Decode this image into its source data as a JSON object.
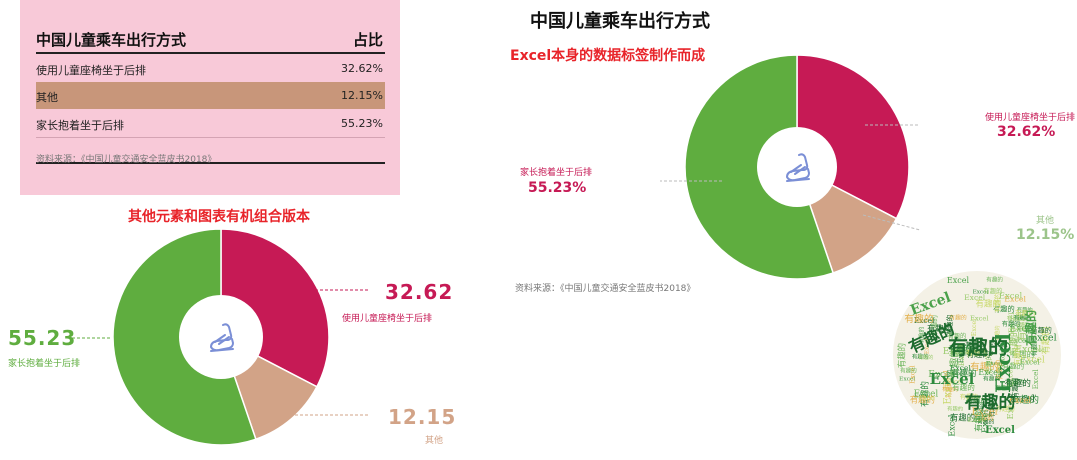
{
  "table": {
    "header_name": "中国儿童乘车出行方式",
    "header_share": "占比",
    "rows": [
      {
        "name": "使用儿童座椅坐于后排",
        "share": "32.62%"
      },
      {
        "name": "其他",
        "share": "12.15%"
      },
      {
        "name": "家长抱着坐于后排",
        "share": "55.23%"
      }
    ],
    "source": "资料来源：《中国儿童交通安全蓝皮书2018》"
  },
  "main_title": "中国儿童乘车出行方式",
  "right_subtitle": "Excel本身的数据标签制作而成",
  "left_subtitle": "其他元素和图表有机组合版本",
  "right_source": "资料来源：《中国儿童交通安全蓝皮书2018》",
  "colors": {
    "seat": "#c61a55",
    "other": "#d2a387",
    "held": "#5fad3f",
    "icon": "#7b8fd6",
    "title_red": "#e8242a"
  },
  "icons": {
    "center": "car-seat-icon"
  },
  "chart_data": [
    {
      "type": "pie",
      "style": "donut",
      "title": "中国儿童乘车出行方式",
      "subtitle": "Excel本身的数据标签制作而成",
      "categories": [
        "使用儿童座椅坐于后排",
        "其他",
        "家长抱着坐于后排"
      ],
      "values": [
        32.62,
        12.15,
        55.23
      ],
      "labels": [
        "32.62%",
        "12.15%",
        "55.23%"
      ]
    },
    {
      "type": "pie",
      "style": "donut",
      "title": "其他元素和图表有机组合版本",
      "categories": [
        "使用儿童座椅坐于后排",
        "其他",
        "家长抱着坐于后排"
      ],
      "values": [
        32.62,
        12.15,
        55.23
      ],
      "labels": [
        "32.62",
        "12.15",
        "55.23"
      ]
    }
  ],
  "word_cloud": {
    "words": [
      "有趣的",
      "Excel",
      "有趣的",
      "Excel",
      "有趣的",
      "Excel",
      "有趣的",
      "Excel",
      "有趣的"
    ]
  }
}
